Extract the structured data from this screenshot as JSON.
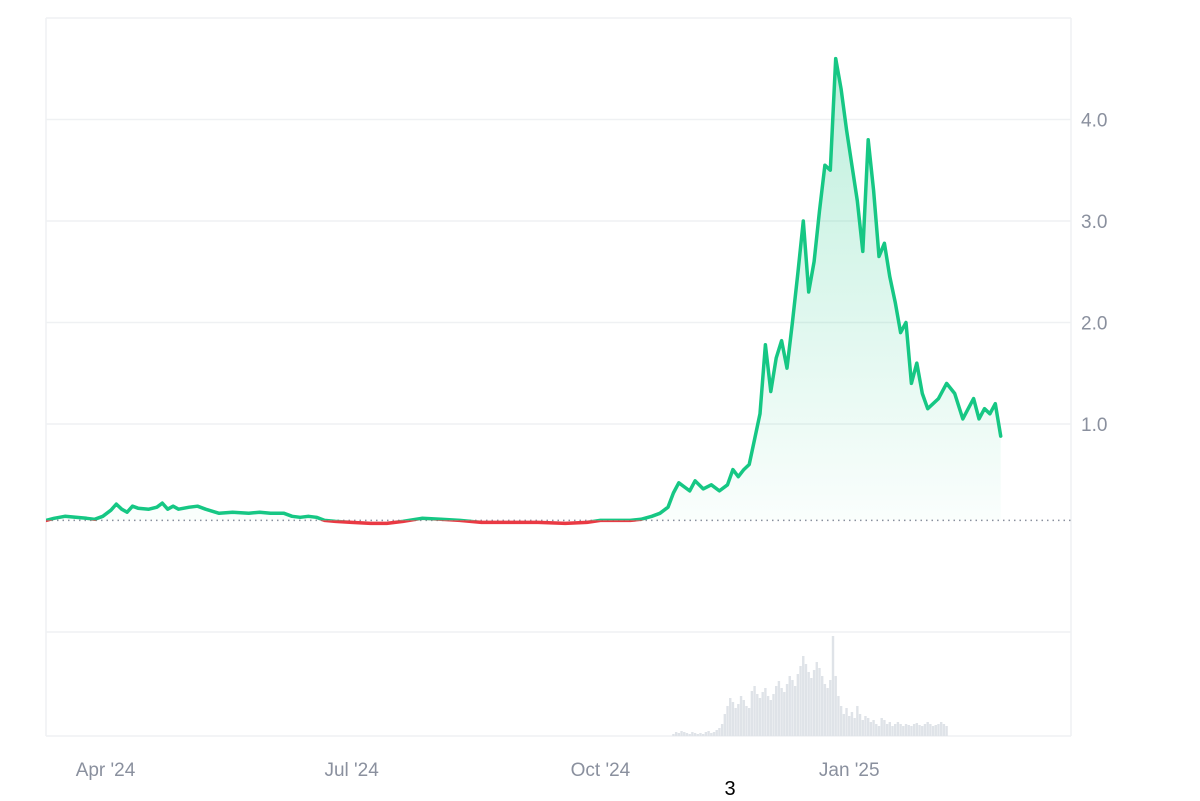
{
  "footer_text": "3",
  "colors": {
    "up": "#16c784",
    "down": "#ea3943",
    "grid": "#eff1f3",
    "axis_text": "#8a909e",
    "baseline": "#8a909e",
    "volume": "#dfe3e8"
  },
  "chart_data": {
    "type": "line",
    "title": "",
    "xlabel": "",
    "ylabel": "",
    "baseline": 0.05,
    "ylim": [
      -1.05,
      5.0
    ],
    "y_ticks": [
      1.0,
      2.0,
      3.0,
      4.0
    ],
    "y_tick_labels": [
      "1.0",
      "2.0",
      "3.0",
      "4.0"
    ],
    "x_ticks": [
      "Apr '24",
      "Jul '24",
      "Oct '24",
      "Jan '25"
    ],
    "x_tick_dates": [
      "2024-04-01",
      "2024-07-01",
      "2024-10-01",
      "2025-01-01"
    ],
    "x_range": [
      "2024-03-10",
      "2025-03-24"
    ],
    "series": [
      {
        "points": [
          [
            "2024-03-10",
            0.05
          ],
          [
            "2024-03-13",
            0.07
          ],
          [
            "2024-03-17",
            0.09
          ],
          [
            "2024-03-21",
            0.08
          ],
          [
            "2024-03-25",
            0.07
          ],
          [
            "2024-03-28",
            0.06
          ],
          [
            "2024-03-31",
            0.09
          ],
          [
            "2024-04-03",
            0.15
          ],
          [
            "2024-04-05",
            0.21
          ],
          [
            "2024-04-07",
            0.16
          ],
          [
            "2024-04-09",
            0.13
          ],
          [
            "2024-04-11",
            0.19
          ],
          [
            "2024-04-13",
            0.17
          ],
          [
            "2024-04-17",
            0.16
          ],
          [
            "2024-04-20",
            0.18
          ],
          [
            "2024-04-22",
            0.22
          ],
          [
            "2024-04-24",
            0.16
          ],
          [
            "2024-04-26",
            0.19
          ],
          [
            "2024-04-28",
            0.16
          ],
          [
            "2024-05-02",
            0.18
          ],
          [
            "2024-05-05",
            0.19
          ],
          [
            "2024-05-08",
            0.16
          ],
          [
            "2024-05-13",
            0.12
          ],
          [
            "2024-05-18",
            0.13
          ],
          [
            "2024-05-24",
            0.12
          ],
          [
            "2024-05-28",
            0.13
          ],
          [
            "2024-06-01",
            0.12
          ],
          [
            "2024-06-06",
            0.12
          ],
          [
            "2024-06-09",
            0.09
          ],
          [
            "2024-06-12",
            0.08
          ],
          [
            "2024-06-15",
            0.09
          ],
          [
            "2024-06-18",
            0.08
          ],
          [
            "2024-06-21",
            0.05
          ],
          [
            "2024-06-25",
            0.04
          ],
          [
            "2024-07-01",
            0.03
          ],
          [
            "2024-07-08",
            0.02
          ],
          [
            "2024-07-14",
            0.02
          ],
          [
            "2024-07-20",
            0.04
          ],
          [
            "2024-07-27",
            0.07
          ],
          [
            "2024-08-03",
            0.06
          ],
          [
            "2024-08-10",
            0.05
          ],
          [
            "2024-08-18",
            0.03
          ],
          [
            "2024-08-28",
            0.03
          ],
          [
            "2024-09-08",
            0.03
          ],
          [
            "2024-09-18",
            0.02
          ],
          [
            "2024-09-26",
            0.03
          ],
          [
            "2024-10-01",
            0.05
          ],
          [
            "2024-10-06",
            0.05
          ],
          [
            "2024-10-12",
            0.05
          ],
          [
            "2024-10-16",
            0.06
          ],
          [
            "2024-10-20",
            0.09
          ],
          [
            "2024-10-23",
            0.12
          ],
          [
            "2024-10-26",
            0.18
          ],
          [
            "2024-10-28",
            0.32
          ],
          [
            "2024-10-30",
            0.42
          ],
          [
            "2024-11-01",
            0.38
          ],
          [
            "2024-11-03",
            0.34
          ],
          [
            "2024-11-05",
            0.44
          ],
          [
            "2024-11-08",
            0.36
          ],
          [
            "2024-11-11",
            0.4
          ],
          [
            "2024-11-14",
            0.34
          ],
          [
            "2024-11-17",
            0.4
          ],
          [
            "2024-11-19",
            0.55
          ],
          [
            "2024-11-21",
            0.48
          ],
          [
            "2024-11-23",
            0.55
          ],
          [
            "2024-11-25",
            0.6
          ],
          [
            "2024-11-27",
            0.85
          ],
          [
            "2024-11-29",
            1.1
          ],
          [
            "2024-12-01",
            1.78
          ],
          [
            "2024-12-03",
            1.32
          ],
          [
            "2024-12-05",
            1.65
          ],
          [
            "2024-12-07",
            1.82
          ],
          [
            "2024-12-09",
            1.55
          ],
          [
            "2024-12-11",
            2.0
          ],
          [
            "2024-12-13",
            2.48
          ],
          [
            "2024-12-15",
            3.0
          ],
          [
            "2024-12-17",
            2.3
          ],
          [
            "2024-12-19",
            2.6
          ],
          [
            "2024-12-21",
            3.1
          ],
          [
            "2024-12-23",
            3.55
          ],
          [
            "2024-12-25",
            3.5
          ],
          [
            "2024-12-27",
            4.6
          ],
          [
            "2024-12-29",
            4.3
          ],
          [
            "2024-12-31",
            3.9
          ],
          [
            "2025-01-02",
            3.55
          ],
          [
            "2025-01-04",
            3.2
          ],
          [
            "2025-01-06",
            2.7
          ],
          [
            "2025-01-08",
            3.8
          ],
          [
            "2025-01-10",
            3.3
          ],
          [
            "2025-01-12",
            2.65
          ],
          [
            "2025-01-14",
            2.78
          ],
          [
            "2025-01-16",
            2.45
          ],
          [
            "2025-01-18",
            2.2
          ],
          [
            "2025-01-20",
            1.9
          ],
          [
            "2025-01-22",
            2.0
          ],
          [
            "2025-01-24",
            1.4
          ],
          [
            "2025-01-26",
            1.6
          ],
          [
            "2025-01-28",
            1.3
          ],
          [
            "2025-01-30",
            1.15
          ],
          [
            "2025-02-03",
            1.25
          ],
          [
            "2025-02-06",
            1.4
          ],
          [
            "2025-02-09",
            1.3
          ],
          [
            "2025-02-12",
            1.05
          ],
          [
            "2025-02-14",
            1.15
          ],
          [
            "2025-02-16",
            1.25
          ],
          [
            "2025-02-18",
            1.05
          ],
          [
            "2025-02-20",
            1.15
          ],
          [
            "2025-02-22",
            1.1
          ],
          [
            "2025-02-24",
            1.2
          ],
          [
            "2025-02-26",
            0.88
          ]
        ]
      }
    ],
    "volume": {
      "start": "2024-10-28",
      "values": [
        2,
        4,
        3,
        5,
        4,
        3,
        2,
        4,
        3,
        2,
        3,
        2,
        4,
        5,
        3,
        4,
        6,
        8,
        12,
        22,
        30,
        38,
        34,
        28,
        32,
        40,
        36,
        30,
        28,
        45,
        50,
        42,
        38,
        44,
        48,
        40,
        36,
        42,
        50,
        55,
        48,
        44,
        52,
        60,
        56,
        50,
        62,
        70,
        80,
        72,
        64,
        58,
        66,
        74,
        68,
        60,
        52,
        48,
        56,
        100,
        60,
        40,
        30,
        22,
        28,
        20,
        24,
        18,
        30,
        22,
        16,
        20,
        18,
        14,
        16,
        12,
        10,
        18,
        16,
        12,
        14,
        10,
        12,
        14,
        12,
        10,
        12,
        11,
        10,
        12,
        13,
        11,
        10,
        12,
        14,
        12,
        10,
        11,
        12,
        14,
        12,
        10
      ]
    },
    "volume_max": 100
  }
}
